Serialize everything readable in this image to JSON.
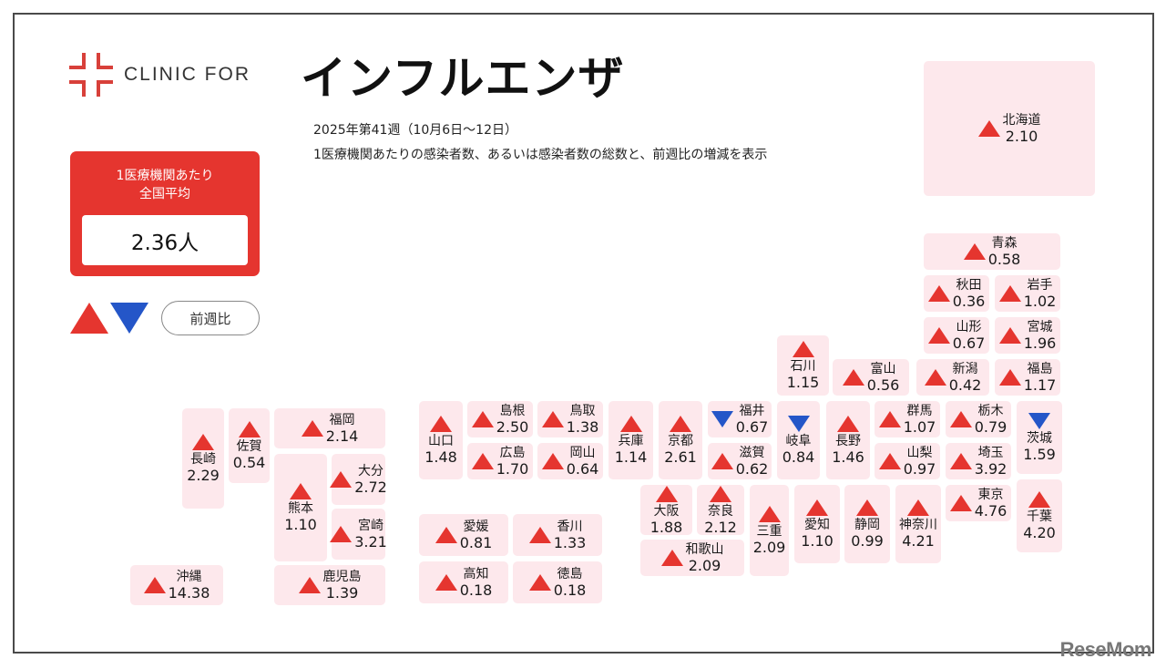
{
  "header": {
    "logo_text": "CLINIC FOR",
    "title": "インフルエンザ",
    "week": "2025年第41週（10月6日〜12日）",
    "description": "1医療機関あたりの感染者数、あるいは感染者数の総数と、前週比の増減を表示"
  },
  "national_average": {
    "label_line1": "1医療機関あたり",
    "label_line2": "全国平均",
    "value": "2.36人"
  },
  "legend": {
    "up_icon": "triangle-up-red",
    "down_icon": "triangle-down-blue",
    "label": "前週比"
  },
  "colors": {
    "accent_red": "#e5352f",
    "down_blue": "#2456c8",
    "tile_bg": "#fde8ec"
  },
  "watermark": "ReseMom",
  "chart_data": {
    "type": "table",
    "title": "インフルエンザ 2025年第41週（10月6日〜12日）",
    "unit": "1医療機関あたりの感染者数",
    "national_average": 2.36,
    "columns": [
      "prefecture",
      "value",
      "trend"
    ],
    "rows": [
      {
        "name": "北海道",
        "value": "2.10",
        "trend": "up"
      },
      {
        "name": "青森",
        "value": "0.58",
        "trend": "up"
      },
      {
        "name": "秋田",
        "value": "0.36",
        "trend": "up"
      },
      {
        "name": "岩手",
        "value": "1.02",
        "trend": "up"
      },
      {
        "name": "山形",
        "value": "0.67",
        "trend": "up"
      },
      {
        "name": "宮城",
        "value": "1.96",
        "trend": "up"
      },
      {
        "name": "新潟",
        "value": "0.42",
        "trend": "up"
      },
      {
        "name": "福島",
        "value": "1.17",
        "trend": "up"
      },
      {
        "name": "石川",
        "value": "1.15",
        "trend": "up"
      },
      {
        "name": "富山",
        "value": "0.56",
        "trend": "up"
      },
      {
        "name": "群馬",
        "value": "1.07",
        "trend": "up"
      },
      {
        "name": "栃木",
        "value": "0.79",
        "trend": "up"
      },
      {
        "name": "茨城",
        "value": "1.59",
        "trend": "down"
      },
      {
        "name": "福井",
        "value": "0.67",
        "trend": "down"
      },
      {
        "name": "岐阜",
        "value": "0.84",
        "trend": "down"
      },
      {
        "name": "長野",
        "value": "1.46",
        "trend": "up"
      },
      {
        "name": "山梨",
        "value": "0.97",
        "trend": "up"
      },
      {
        "name": "埼玉",
        "value": "3.92",
        "trend": "up"
      },
      {
        "name": "東京",
        "value": "4.76",
        "trend": "up"
      },
      {
        "name": "千葉",
        "value": "4.20",
        "trend": "up"
      },
      {
        "name": "滋賀",
        "value": "0.62",
        "trend": "up"
      },
      {
        "name": "京都",
        "value": "2.61",
        "trend": "up"
      },
      {
        "name": "兵庫",
        "value": "1.14",
        "trend": "up"
      },
      {
        "name": "大阪",
        "value": "1.88",
        "trend": "up"
      },
      {
        "name": "奈良",
        "value": "2.12",
        "trend": "up"
      },
      {
        "name": "三重",
        "value": "2.09",
        "trend": "up"
      },
      {
        "name": "愛知",
        "value": "1.10",
        "trend": "up"
      },
      {
        "name": "静岡",
        "value": "0.99",
        "trend": "up"
      },
      {
        "name": "神奈川",
        "value": "4.21",
        "trend": "up"
      },
      {
        "name": "和歌山",
        "value": "2.09",
        "trend": "up"
      },
      {
        "name": "鳥取",
        "value": "1.38",
        "trend": "up"
      },
      {
        "name": "島根",
        "value": "2.50",
        "trend": "up"
      },
      {
        "name": "岡山",
        "value": "0.64",
        "trend": "up"
      },
      {
        "name": "広島",
        "value": "1.70",
        "trend": "up"
      },
      {
        "name": "山口",
        "value": "1.48",
        "trend": "up"
      },
      {
        "name": "香川",
        "value": "1.33",
        "trend": "up"
      },
      {
        "name": "愛媛",
        "value": "0.81",
        "trend": "up"
      },
      {
        "name": "徳島",
        "value": "0.18",
        "trend": "up"
      },
      {
        "name": "高知",
        "value": "0.18",
        "trend": "up"
      },
      {
        "name": "福岡",
        "value": "2.14",
        "trend": "up"
      },
      {
        "name": "佐賀",
        "value": "0.54",
        "trend": "up"
      },
      {
        "name": "長崎",
        "value": "2.29",
        "trend": "up"
      },
      {
        "name": "熊本",
        "value": "1.10",
        "trend": "up"
      },
      {
        "name": "大分",
        "value": "2.72",
        "trend": "up"
      },
      {
        "name": "宮崎",
        "value": "3.21",
        "trend": "up"
      },
      {
        "name": "鹿児島",
        "value": "1.39",
        "trend": "up"
      },
      {
        "name": "沖縄",
        "value": "14.38",
        "trend": "up"
      }
    ]
  }
}
